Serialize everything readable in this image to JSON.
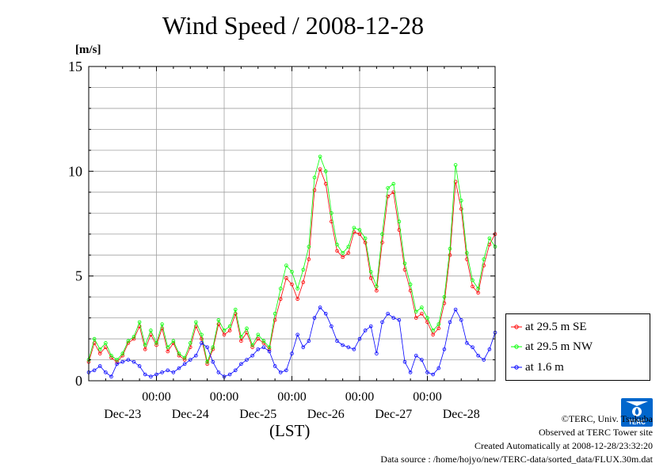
{
  "chart_data": {
    "type": "line",
    "title": "Wind Speed / 2008-12-28",
    "ylabel": "[m/s]",
    "xlabel": "(LST)",
    "ylim": [
      0,
      15
    ],
    "yticks": [
      0,
      5,
      10,
      15
    ],
    "xlim": [
      0,
      144
    ],
    "x_time_ticks": [
      "00:00",
      "00:00",
      "00:00",
      "00:00",
      "00:00"
    ],
    "x_day_labels": [
      "Dec-23",
      "Dec-24",
      "Dec-25",
      "Dec-26",
      "Dec-27",
      "Dec-28"
    ],
    "grid": true,
    "legend_position": "right-bottom",
    "series": [
      {
        "name": "at 29.5 m SE",
        "color": "#ff0000",
        "x": [
          0,
          2,
          4,
          6,
          8,
          10,
          12,
          14,
          16,
          18,
          20,
          22,
          24,
          26,
          28,
          30,
          32,
          34,
          36,
          38,
          40,
          42,
          44,
          46,
          48,
          50,
          52,
          54,
          56,
          58,
          60,
          62,
          64,
          66,
          68,
          70,
          72,
          74,
          76,
          78,
          80,
          82,
          84,
          86,
          88,
          90,
          92,
          94,
          96,
          98,
          100,
          102,
          104,
          106,
          108,
          110,
          112,
          114,
          116,
          118,
          120,
          122,
          124,
          126,
          128,
          130,
          132,
          134,
          136,
          138,
          140,
          142,
          144
        ],
        "y": [
          0.9,
          1.8,
          1.3,
          1.6,
          1.1,
          0.9,
          1.2,
          1.8,
          2.0,
          2.6,
          1.5,
          2.2,
          1.7,
          2.5,
          1.4,
          1.8,
          1.2,
          1.0,
          1.6,
          2.6,
          2.0,
          0.8,
          1.5,
          2.7,
          2.2,
          2.4,
          3.2,
          1.9,
          2.3,
          1.6,
          2.0,
          1.8,
          1.5,
          2.9,
          3.9,
          4.9,
          4.6,
          3.9,
          4.7,
          5.8,
          9.1,
          10.1,
          9.4,
          7.6,
          6.2,
          5.9,
          6.1,
          7.1,
          7.0,
          6.6,
          4.9,
          4.3,
          6.6,
          8.8,
          9.0,
          7.2,
          5.3,
          4.3,
          3.0,
          3.2,
          2.8,
          2.2,
          2.5,
          3.7,
          6.0,
          9.5,
          8.2,
          5.8,
          4.5,
          4.2,
          5.5,
          6.5,
          7.0
        ]
      },
      {
        "name": "at 29.5 m NW",
        "color": "#00ff00",
        "x": [
          0,
          2,
          4,
          6,
          8,
          10,
          12,
          14,
          16,
          18,
          20,
          22,
          24,
          26,
          28,
          30,
          32,
          34,
          36,
          38,
          40,
          42,
          44,
          46,
          48,
          50,
          52,
          54,
          56,
          58,
          60,
          62,
          64,
          66,
          68,
          70,
          72,
          74,
          76,
          78,
          80,
          82,
          84,
          86,
          88,
          90,
          92,
          94,
          96,
          98,
          100,
          102,
          104,
          106,
          108,
          110,
          112,
          114,
          116,
          118,
          120,
          122,
          124,
          126,
          128,
          130,
          132,
          134,
          136,
          138,
          140,
          142,
          144
        ],
        "y": [
          1.0,
          2.0,
          1.5,
          1.8,
          1.2,
          1.0,
          1.3,
          1.9,
          2.1,
          2.8,
          1.7,
          2.4,
          1.8,
          2.7,
          1.6,
          1.9,
          1.3,
          1.1,
          1.8,
          2.8,
          2.2,
          0.9,
          1.6,
          2.9,
          2.4,
          2.6,
          3.4,
          2.1,
          2.5,
          1.7,
          2.2,
          1.9,
          1.6,
          3.2,
          4.4,
          5.5,
          5.2,
          4.4,
          5.3,
          6.4,
          9.7,
          10.7,
          10.0,
          8.0,
          6.5,
          6.1,
          6.4,
          7.3,
          7.2,
          6.8,
          5.2,
          4.5,
          7.0,
          9.2,
          9.4,
          7.6,
          5.6,
          4.6,
          3.3,
          3.5,
          3.0,
          2.4,
          2.7,
          4.0,
          6.3,
          10.3,
          8.6,
          6.1,
          4.8,
          4.4,
          5.8,
          6.8,
          6.4
        ]
      },
      {
        "name": "at 1.6 m",
        "color": "#0000ff",
        "x": [
          0,
          2,
          4,
          6,
          8,
          10,
          12,
          14,
          16,
          18,
          20,
          22,
          24,
          26,
          28,
          30,
          32,
          34,
          36,
          38,
          40,
          42,
          44,
          46,
          48,
          50,
          52,
          54,
          56,
          58,
          60,
          62,
          64,
          66,
          68,
          70,
          72,
          74,
          76,
          78,
          80,
          82,
          84,
          86,
          88,
          90,
          92,
          94,
          96,
          98,
          100,
          102,
          104,
          106,
          108,
          110,
          112,
          114,
          116,
          118,
          120,
          122,
          124,
          126,
          128,
          130,
          132,
          134,
          136,
          138,
          140,
          142,
          144
        ],
        "y": [
          0.4,
          0.5,
          0.7,
          0.4,
          0.2,
          0.8,
          0.9,
          1.0,
          0.9,
          0.7,
          0.3,
          0.2,
          0.3,
          0.4,
          0.5,
          0.4,
          0.6,
          0.8,
          1.0,
          1.2,
          1.8,
          1.6,
          0.9,
          0.4,
          0.2,
          0.3,
          0.5,
          0.8,
          1.0,
          1.2,
          1.5,
          1.6,
          1.4,
          0.7,
          0.4,
          0.5,
          1.3,
          2.2,
          1.6,
          1.9,
          3.0,
          3.5,
          3.2,
          2.6,
          1.9,
          1.7,
          1.6,
          1.5,
          2.0,
          2.4,
          2.6,
          1.3,
          2.8,
          3.2,
          3.0,
          2.9,
          0.9,
          0.4,
          1.2,
          1.0,
          0.4,
          0.3,
          0.6,
          1.5,
          2.8,
          3.4,
          2.9,
          1.8,
          1.6,
          1.2,
          1.0,
          1.5,
          2.3
        ]
      }
    ]
  },
  "legend": {
    "items": [
      {
        "label": "at 29.5 m SE"
      },
      {
        "label": "at 29.5 m NW"
      },
      {
        "label": "at 1.6 m"
      }
    ]
  },
  "footer": {
    "credit": "©TERC, Univ. Tsukuba",
    "observed": "Observed at TERC Tower site",
    "created": "Created Automatically at 2008-12-28/23:32:20",
    "source": "Data source : /home/hojyo/new/TERC-data/sorted_data/FLUX.30m.dat"
  },
  "logo": {
    "text": "TERC",
    "color": "#0066cc"
  }
}
